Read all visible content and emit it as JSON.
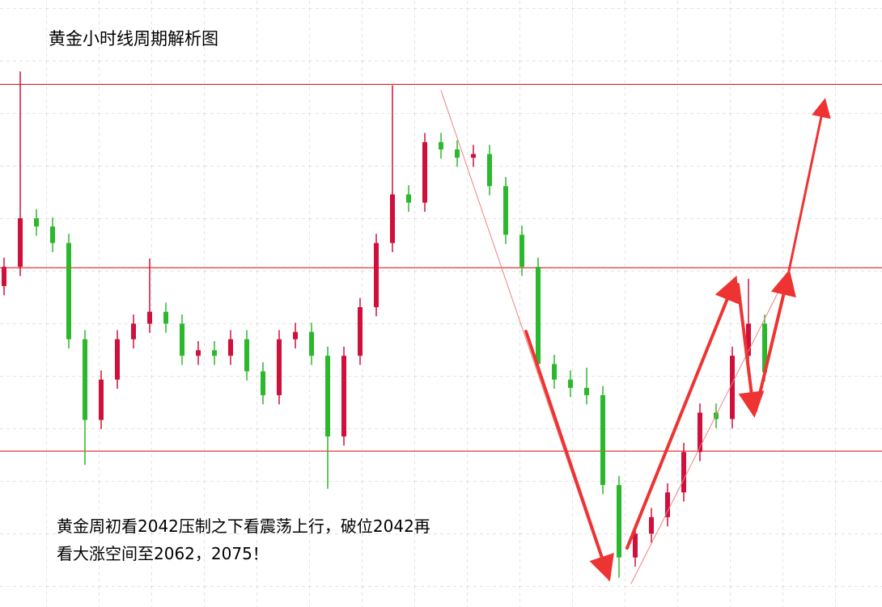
{
  "chart_data": {
    "type": "candlestick",
    "title": "黄金小时线周期解析图",
    "annotation": [
      "黄金周初看2042压制之下看震荡上行，破位2042再",
      "看大涨空间至2062，2075！"
    ],
    "open": [
      2040.0,
      2042.1,
      2047.4,
      2046.5,
      2044.7,
      2034.2,
      2025.4,
      2029.8,
      2034.2,
      2035.9,
      2037.2,
      2035.9,
      2032.4,
      2033.0,
      2032.4,
      2034.2,
      2030.7,
      2028.1,
      2034.2,
      2035.0,
      2032.4,
      2023.6,
      2032.4,
      2037.7,
      2044.7,
      2050.0,
      2049.1,
      2055.7,
      2054.9,
      2054.0,
      2054.4,
      2050.9,
      2045.6,
      2042.1,
      2031.5,
      2029.8,
      2028.9,
      2028.1,
      2018.3,
      2010.4,
      2013.0,
      2014.8,
      2017.5,
      2021.9,
      2026.2,
      2025.5,
      2032.4,
      2035.9
    ],
    "high": [
      2043.1,
      2063.4,
      2048.4,
      2047.5,
      2045.7,
      2035.2,
      2030.8,
      2035.2,
      2036.9,
      2043.0,
      2038.2,
      2036.9,
      2034.0,
      2034.0,
      2035.2,
      2035.2,
      2031.7,
      2035.2,
      2036.0,
      2036.0,
      2033.4,
      2033.4,
      2038.7,
      2045.7,
      2061.9,
      2051.0,
      2056.7,
      2056.7,
      2055.9,
      2055.4,
      2055.4,
      2051.9,
      2046.6,
      2043.1,
      2032.5,
      2030.8,
      2031.1,
      2029.1,
      2019.3,
      2014.0,
      2015.8,
      2018.5,
      2022.9,
      2027.2,
      2027.2,
      2033.4,
      2040.8,
      2036.9
    ],
    "low": [
      2039.0,
      2041.1,
      2045.5,
      2043.7,
      2033.2,
      2020.5,
      2024.4,
      2028.8,
      2033.2,
      2034.9,
      2034.9,
      2031.4,
      2031.4,
      2031.4,
      2031.4,
      2029.7,
      2027.1,
      2027.1,
      2033.2,
      2031.4,
      2017.9,
      2022.6,
      2031.4,
      2036.7,
      2043.7,
      2048.1,
      2048.1,
      2053.9,
      2053.0,
      2053.0,
      2049.9,
      2044.6,
      2041.1,
      2030.5,
      2028.8,
      2027.9,
      2027.1,
      2017.3,
      2008.2,
      2009.4,
      2012.0,
      2013.8,
      2016.5,
      2020.9,
      2024.5,
      2024.5,
      2031.4,
      2029.6
    ],
    "close": [
      2042.1,
      2047.4,
      2046.5,
      2044.7,
      2034.2,
      2025.4,
      2029.8,
      2034.2,
      2035.9,
      2037.2,
      2035.9,
      2032.4,
      2033.0,
      2032.4,
      2034.2,
      2030.7,
      2028.1,
      2034.2,
      2035.0,
      2032.4,
      2023.6,
      2032.4,
      2037.7,
      2044.7,
      2050.0,
      2049.1,
      2055.7,
      2054.9,
      2054.0,
      2054.4,
      2050.9,
      2045.6,
      2042.1,
      2031.5,
      2029.8,
      2028.9,
      2028.1,
      2018.3,
      2010.4,
      2013.0,
      2014.8,
      2017.5,
      2021.9,
      2026.2,
      2025.5,
      2032.4,
      2035.9,
      2030.6
    ],
    "up_color": "#d0103a",
    "down_color": "#2cb82c",
    "levels": [
      2062,
      2042,
      2022
    ],
    "level_color": "#e00000",
    "ylim": [
      2005.0,
      2071.2
    ]
  }
}
